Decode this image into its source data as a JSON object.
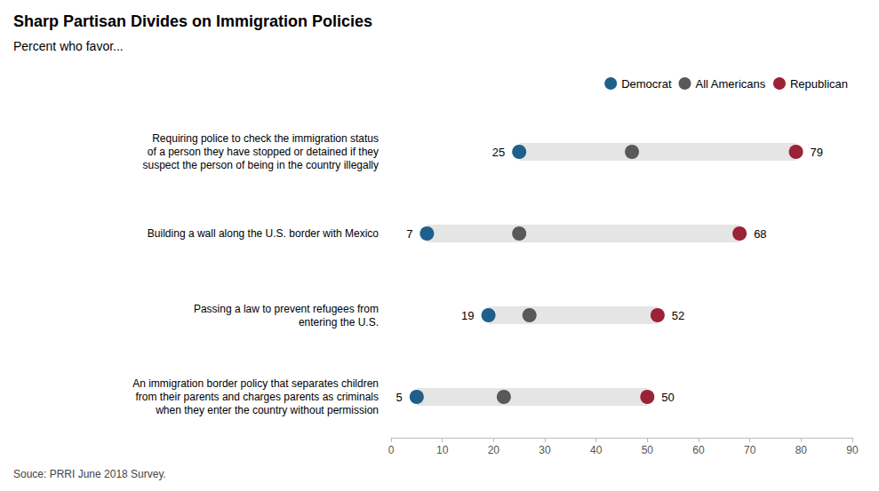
{
  "chart_data": {
    "type": "dumbbell",
    "title": "Sharp Partisan Divides on Immigration Policies",
    "subtitle": "Percent who favor...",
    "source": "Souce: PRRI June 2018 Survey.",
    "orientation": "horizontal",
    "categories": [
      "Requiring police to check the immigration status\nof a person they have stopped or detained if they\nsuspect the person of being in the country illegally",
      "Building a wall along the U.S. border with Mexico",
      "Passing a law to prevent refugees from\nentering the U.S.",
      "An immigration border policy that separates children\nfrom their parents and charges parents as criminals\nwhen they enter the country without permission"
    ],
    "series": [
      {
        "name": "Democrat",
        "color": "#1F5F8B",
        "values": [
          25,
          7,
          19,
          5
        ],
        "data_labels": true
      },
      {
        "name": "All Americans",
        "color": "#595959",
        "values": [
          47,
          25,
          27,
          22
        ],
        "data_labels": false
      },
      {
        "name": "Republican",
        "color": "#9B2335",
        "values": [
          79,
          68,
          52,
          50
        ],
        "data_labels": true
      }
    ],
    "color": "#E5E5E5",
    "xlim": [
      0,
      90
    ],
    "xticks": [
      0,
      10,
      20,
      30,
      40,
      50,
      60,
      70,
      80,
      90
    ],
    "grid": false,
    "legend": "upper right"
  }
}
